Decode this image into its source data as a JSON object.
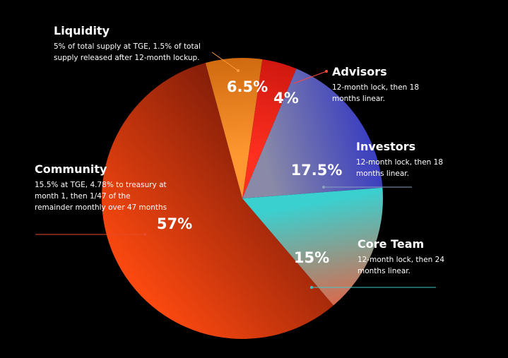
{
  "chart_data": {
    "type": "pie",
    "slices": [
      {
        "name": "Community",
        "value": 57,
        "label": "57%",
        "description": "15.5% at TGE, 4.78% to treasury at month 1, then 1/47 of the remainder monthly over 47 months",
        "color_light": "#ff4a10",
        "color_dark": "#7a1a08",
        "leader_color": "#e84a2a"
      },
      {
        "name": "Liquidity",
        "value": 6.5,
        "label": "6.5%",
        "description": "5% of total supply at TGE, 1.5% of total supply released after 12-month lockup.",
        "color_light": "#ff9830",
        "color_dark": "#d06a10",
        "leader_color": "#ff9a40"
      },
      {
        "name": "Advisors",
        "value": 4,
        "label": "4%",
        "description": "12-month lock, then 18 months linear.",
        "color_light": "#ff3020",
        "color_dark": "#d01810",
        "leader_color": "#ff4a3a"
      },
      {
        "name": "Investors",
        "value": 17.5,
        "label": "17.5%",
        "description": "12-month lock, then 18 months linear.",
        "color_light": "#3a3ec0",
        "color_dark": "#8a8aa8",
        "leader_color": "#8aa0c0"
      },
      {
        "name": "Core Team",
        "value": 15,
        "label": "15%",
        "description": "12-month lock, then 24 months linear.",
        "color_light": "#3ad0d0",
        "color_dark": "#e86040",
        "leader_color": "#40c8c8"
      }
    ]
  }
}
